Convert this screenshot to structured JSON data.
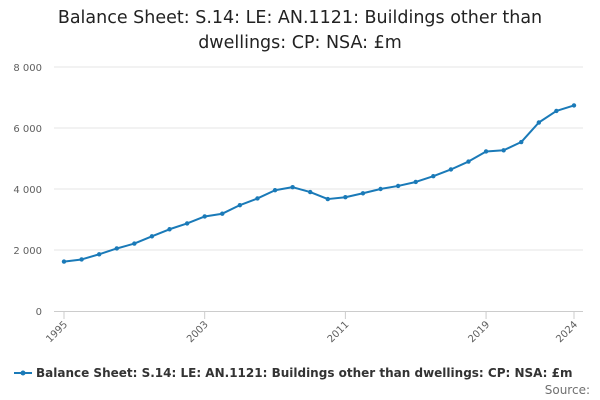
{
  "colors": {
    "series": "#1a7ab8",
    "grid": "#e6e6e6",
    "axis": "#cccccc"
  },
  "chart_data": {
    "type": "line",
    "title": "Balance Sheet: S.14: LE: AN.1121: Buildings other than dwellings: CP: NSA: £m",
    "xlabel": "",
    "ylabel": "",
    "ylim": [
      0,
      8000
    ],
    "yticks": [
      0,
      2000,
      4000,
      6000,
      8000
    ],
    "ytick_labels": [
      "0",
      "2 000",
      "4 000",
      "6 000",
      "8 000"
    ],
    "xlim": [
      1995,
      2024
    ],
    "xticks": [
      1995,
      2003,
      2011,
      2019,
      2024
    ],
    "xtick_labels": [
      "1995",
      "2003",
      "2011",
      "2019",
      "2024"
    ],
    "grid": true,
    "legend_position": "bottom",
    "series": [
      {
        "name": "Balance Sheet: S.14: LE: AN.1121: Buildings other than dwellings: CP: NSA: £m",
        "x": [
          1995,
          1996,
          1997,
          1998,
          1999,
          2000,
          2001,
          2002,
          2003,
          2004,
          2005,
          2006,
          2007,
          2008,
          2009,
          2010,
          2011,
          2012,
          2013,
          2014,
          2015,
          2016,
          2017,
          2018,
          2019,
          2020,
          2021,
          2022,
          2023,
          2024
        ],
        "values": [
          1620,
          1690,
          1860,
          2050,
          2210,
          2450,
          2680,
          2870,
          3100,
          3190,
          3470,
          3690,
          3960,
          4060,
          3900,
          3670,
          3730,
          3860,
          4000,
          4100,
          4230,
          4420,
          4640,
          4900,
          5230,
          5270,
          5540,
          6180,
          6560,
          6740
        ]
      }
    ]
  },
  "legend": {
    "label": "Balance Sheet: S.14: LE: AN.1121: Buildings other than dwellings: CP: NSA: £m"
  },
  "credits": {
    "label": "Source:"
  }
}
